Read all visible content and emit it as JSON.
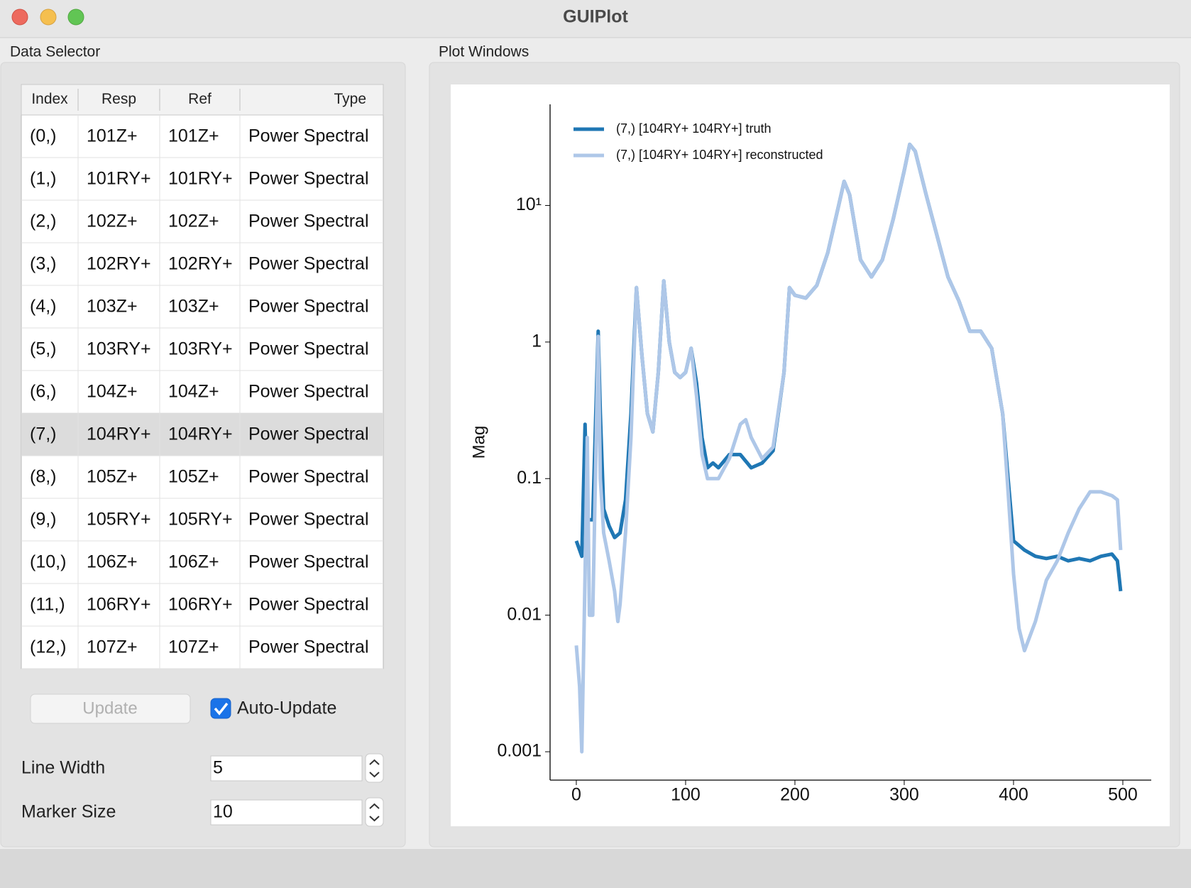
{
  "window": {
    "title": "GUIPlot"
  },
  "data_selector": {
    "title": "Data Selector",
    "table": {
      "headers": [
        "Index",
        "Resp",
        "Ref",
        "Type"
      ],
      "selected_row": 7,
      "rows": [
        [
          "(0,)",
          "101Z+",
          "101Z+",
          "Power Spectral"
        ],
        [
          "(1,)",
          "101RY+",
          "101RY+",
          "Power Spectral"
        ],
        [
          "(2,)",
          "102Z+",
          "102Z+",
          "Power Spectral"
        ],
        [
          "(3,)",
          "102RY+",
          "102RY+",
          "Power Spectral"
        ],
        [
          "(4,)",
          "103Z+",
          "103Z+",
          "Power Spectral"
        ],
        [
          "(5,)",
          "103RY+",
          "103RY+",
          "Power Spectral"
        ],
        [
          "(6,)",
          "104Z+",
          "104Z+",
          "Power Spectral"
        ],
        [
          "(7,)",
          "104RY+",
          "104RY+",
          "Power Spectral"
        ],
        [
          "(8,)",
          "105Z+",
          "105Z+",
          "Power Spectral"
        ],
        [
          "(9,)",
          "105RY+",
          "105RY+",
          "Power Spectral"
        ],
        [
          "(10,)",
          "106Z+",
          "106Z+",
          "Power Spectral"
        ],
        [
          "(11,)",
          "106RY+",
          "106RY+",
          "Power Spectral"
        ],
        [
          "(12,)",
          "107Z+",
          "107Z+",
          "Power Spectral"
        ]
      ]
    },
    "update_button": "Update",
    "auto_update": {
      "label": "Auto-Update",
      "checked": true
    },
    "line_width": {
      "label": "Line Width",
      "value": "5"
    },
    "marker_size": {
      "label": "Marker Size",
      "value": "10"
    }
  },
  "plot_windows": {
    "title": "Plot Windows"
  },
  "chart_data": {
    "type": "line",
    "ylabel": "Mag",
    "log_y": true,
    "legend": "upper left",
    "xlim": [
      -24,
      526
    ],
    "xticks": [
      0,
      100,
      200,
      300,
      400,
      500
    ],
    "ylim": [
      0.00062,
      55
    ],
    "yticks": [
      {
        "value": 10,
        "label": "10¹"
      },
      1,
      0.1,
      0.01,
      0.001
    ],
    "series": [
      {
        "name": "(7,) [104RY+ 104RY+] truth",
        "color": "#1f77b4",
        "x": [
          0,
          3,
          5,
          8,
          10,
          15,
          20,
          22,
          25,
          30,
          35,
          40,
          45,
          50,
          55,
          60,
          65,
          70,
          75,
          80,
          85,
          90,
          95,
          100,
          105,
          110,
          115,
          120,
          125,
          130,
          140,
          150,
          160,
          170,
          180,
          190,
          195,
          200,
          210,
          220,
          230,
          240,
          245,
          250,
          260,
          270,
          280,
          290,
          300,
          305,
          310,
          320,
          330,
          340,
          350,
          360,
          370,
          380,
          390,
          395,
          400,
          410,
          420,
          430,
          440,
          450,
          460,
          470,
          480,
          490,
          495,
          498
        ],
        "values": [
          0.035,
          0.03,
          0.027,
          0.25,
          0.05,
          0.05,
          1.2,
          0.3,
          0.06,
          0.045,
          0.037,
          0.04,
          0.07,
          0.3,
          2.5,
          0.8,
          0.3,
          0.22,
          0.6,
          2.8,
          1.0,
          0.6,
          0.55,
          0.6,
          0.9,
          0.5,
          0.2,
          0.12,
          0.13,
          0.12,
          0.15,
          0.15,
          0.12,
          0.13,
          0.16,
          0.6,
          2.5,
          2.2,
          2.1,
          2.6,
          4.5,
          10,
          15,
          12,
          4,
          3.0,
          4.0,
          8,
          18,
          28,
          25,
          12,
          6,
          3,
          2,
          1.2,
          1.2,
          0.9,
          0.3,
          0.1,
          0.035,
          0.03,
          0.027,
          0.026,
          0.027,
          0.025,
          0.026,
          0.025,
          0.027,
          0.028,
          0.025,
          0.015
        ]
      },
      {
        "name": "(7,) [104RY+ 104RY+] reconstructed",
        "color": "#aec7e8",
        "x": [
          0,
          3,
          5,
          8,
          10,
          12,
          15,
          20,
          22,
          25,
          30,
          35,
          38,
          40,
          45,
          50,
          55,
          60,
          65,
          70,
          75,
          80,
          85,
          90,
          95,
          100,
          105,
          110,
          115,
          120,
          130,
          140,
          150,
          155,
          160,
          170,
          180,
          190,
          195,
          200,
          210,
          220,
          230,
          240,
          245,
          250,
          260,
          270,
          280,
          290,
          300,
          305,
          310,
          320,
          330,
          340,
          350,
          360,
          370,
          380,
          390,
          395,
          400,
          405,
          410,
          420,
          430,
          440,
          450,
          460,
          470,
          480,
          490,
          495,
          498
        ],
        "values": [
          0.006,
          0.003,
          0.001,
          0.02,
          0.2,
          0.01,
          0.01,
          1.1,
          0.1,
          0.04,
          0.025,
          0.015,
          0.009,
          0.012,
          0.04,
          0.2,
          2.5,
          0.8,
          0.3,
          0.22,
          0.6,
          2.8,
          1.0,
          0.6,
          0.55,
          0.6,
          0.9,
          0.4,
          0.15,
          0.1,
          0.1,
          0.14,
          0.25,
          0.27,
          0.2,
          0.14,
          0.17,
          0.6,
          2.5,
          2.2,
          2.1,
          2.6,
          4.5,
          10,
          15,
          12,
          4,
          3.0,
          4.0,
          8,
          18,
          28,
          25,
          12,
          6,
          3,
          2,
          1.2,
          1.2,
          0.9,
          0.3,
          0.08,
          0.02,
          0.008,
          0.0055,
          0.009,
          0.018,
          0.025,
          0.04,
          0.06,
          0.08,
          0.08,
          0.075,
          0.07,
          0.03
        ]
      }
    ]
  }
}
